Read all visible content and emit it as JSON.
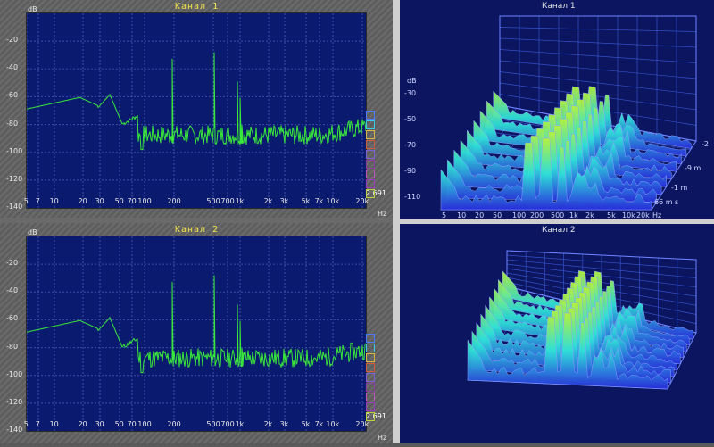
{
  "panels_2d": [
    {
      "title": "Канал 1",
      "unit_db": "dB",
      "unit_hz": "Hz",
      "readout": "2.691"
    },
    {
      "title": "Канал 2",
      "unit_db": "dB",
      "unit_hz": "Hz",
      "readout": "2.691"
    }
  ],
  "y_ticks_2d": [
    "-20",
    "-40",
    "-60",
    "-80",
    "-100",
    "-120",
    "-140"
  ],
  "x_ticks_2d": [
    "5",
    "7",
    "10",
    "20",
    "30",
    "50",
    "70",
    "100",
    "200",
    "500",
    "700",
    "1k",
    "2k",
    "3k",
    "5k",
    "7k",
    "10k",
    "20k"
  ],
  "panels_3d": [
    {
      "title": "Канал 1",
      "unit_db": "dB",
      "unit_hz": "Hz",
      "y_ticks": [
        "-30",
        "-50",
        "-70",
        "-90",
        "-110"
      ],
      "x_ticks": [
        "5",
        "10",
        "20",
        "50",
        "100",
        "200",
        "500",
        "1k",
        "2k",
        "5k",
        "10k",
        "20k"
      ],
      "time_ticks": [
        "-2",
        "-9  m",
        "-1  m",
        "66  m s"
      ]
    },
    {
      "title": "Канал 2"
    }
  ],
  "colors": {
    "plot_bg": "#0a1a6e",
    "trace": "#39e83a",
    "title": "#f2e34a",
    "panel3d_bg": "#0b1560"
  }
}
